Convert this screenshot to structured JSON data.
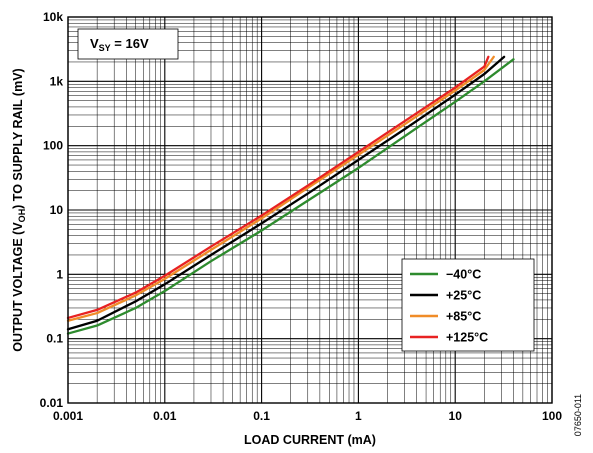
{
  "chart_data": {
    "type": "line",
    "xlabel": "LOAD CURRENT (mA)",
    "ylabel": {
      "prefix": "OUTPUT VOLTAGE (V",
      "sub": "OH",
      "suffix": ") TO SUPPLY RAIL (mV)"
    },
    "x_scale": "log",
    "y_scale": "log",
    "xlim": [
      0.001,
      100
    ],
    "ylim": [
      0.01,
      10000
    ],
    "x_ticks": [
      {
        "value": 0.001,
        "label": "0.001"
      },
      {
        "value": 0.01,
        "label": "0.01"
      },
      {
        "value": 0.1,
        "label": "0.1"
      },
      {
        "value": 1,
        "label": "1"
      },
      {
        "value": 10,
        "label": "10"
      },
      {
        "value": 100,
        "label": "100"
      }
    ],
    "y_ticks": [
      {
        "value": 0.01,
        "label": "0.01"
      },
      {
        "value": 0.1,
        "label": "0.1"
      },
      {
        "value": 1,
        "label": "1"
      },
      {
        "value": 10,
        "label": "10"
      },
      {
        "value": 100,
        "label": "100"
      },
      {
        "value": 1000,
        "label": "1k"
      },
      {
        "value": 10000,
        "label": "10k"
      }
    ],
    "grid": true,
    "annotation": {
      "main": "V",
      "sub": "SY",
      "rest": " = 16V"
    },
    "legend_position": "bottom-right",
    "series": [
      {
        "name": "−40°C",
        "color": "#2e8b2e",
        "x": [
          0.001,
          0.002,
          0.005,
          0.01,
          0.03,
          0.1,
          0.3,
          1,
          3,
          10,
          20,
          40
        ],
        "y": [
          0.12,
          0.16,
          0.3,
          0.55,
          1.6,
          4.8,
          14,
          45,
          140,
          480,
          1000,
          2200
        ]
      },
      {
        "name": "+25°C",
        "color": "#000000",
        "x": [
          0.001,
          0.002,
          0.005,
          0.01,
          0.03,
          0.1,
          0.3,
          1,
          3,
          10,
          20,
          32
        ],
        "y": [
          0.14,
          0.19,
          0.38,
          0.7,
          2.0,
          6.2,
          18,
          60,
          180,
          620,
          1300,
          2400
        ]
      },
      {
        "name": "+85°C",
        "color": "#f08c28",
        "x": [
          0.001,
          0.002,
          0.005,
          0.01,
          0.03,
          0.1,
          0.3,
          1,
          3,
          10,
          20,
          25
        ],
        "y": [
          0.19,
          0.25,
          0.47,
          0.85,
          2.4,
          7.4,
          22,
          72,
          215,
          720,
          1500,
          2400
        ]
      },
      {
        "name": "+125°C",
        "color": "#e82222",
        "x": [
          0.001,
          0.002,
          0.005,
          0.01,
          0.03,
          0.1,
          0.3,
          1,
          3,
          10,
          20,
          22
        ],
        "y": [
          0.21,
          0.28,
          0.52,
          0.95,
          2.7,
          8.2,
          24,
          80,
          240,
          800,
          1700,
          2400
        ]
      }
    ]
  },
  "figure_id": "07650-011"
}
